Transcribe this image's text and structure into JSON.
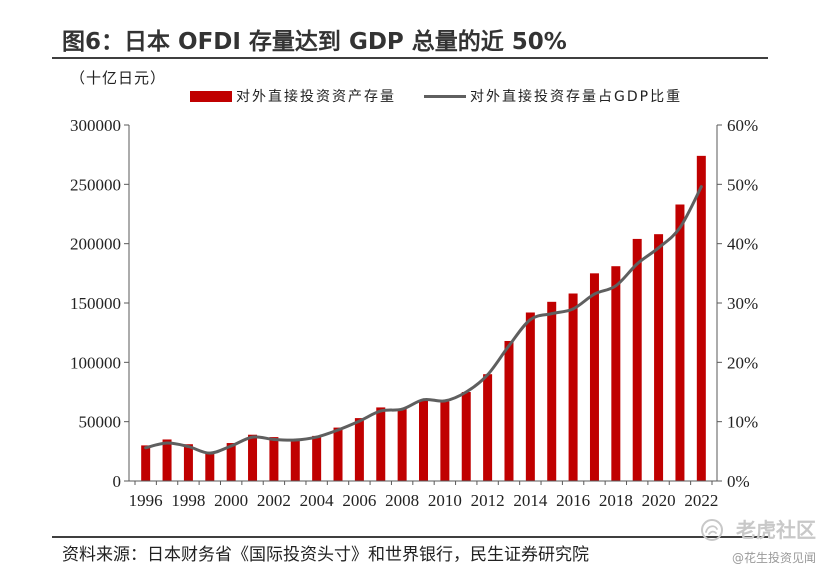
{
  "source": "资料来源：日本财务省《国际投资头寸》和世界银行，民生证券研究院",
  "watermark": {
    "brand": "老虎社区",
    "handle": "@花生投资见闻",
    "logo_icon": "tiger-community-logo-icon"
  },
  "colors": {
    "bar": "#c00000",
    "line": "#5f5f5f",
    "axis": "#595959",
    "rule": "#3f3f3f"
  },
  "chart_data": {
    "type": "bar",
    "title": "图6：日本 OFDI 存量达到 GDP 总量的近 50%",
    "ylabel_left": "（十亿日元）",
    "categories": [
      "1996",
      "1997",
      "1998",
      "1999",
      "2000",
      "2001",
      "2002",
      "2003",
      "2004",
      "2005",
      "2006",
      "2007",
      "2008",
      "2009",
      "2010",
      "2011",
      "2012",
      "2013",
      "2014",
      "2015",
      "2016",
      "2017",
      "2018",
      "2019",
      "2020",
      "2021",
      "2022"
    ],
    "x_tick_labels": [
      "1996",
      "1998",
      "2000",
      "2002",
      "2004",
      "2006",
      "2008",
      "2010",
      "2012",
      "2014",
      "2016",
      "2018",
      "2020",
      "2022"
    ],
    "series": [
      {
        "name": "对外直接投资资产存量",
        "type": "bar",
        "axis": "left",
        "values": [
          30000,
          35000,
          31000,
          24000,
          32000,
          39000,
          37000,
          35000,
          38000,
          45000,
          53000,
          62000,
          61000,
          68000,
          67000,
          75000,
          90000,
          118000,
          142000,
          151000,
          158000,
          175000,
          181000,
          204000,
          208000,
          233000,
          274000
        ]
      },
      {
        "name": "对外直接投资存量占GDP比重",
        "type": "line",
        "axis": "right",
        "values": [
          5.6,
          6.4,
          5.8,
          4.7,
          5.9,
          7.4,
          7.0,
          6.9,
          7.4,
          8.6,
          10.1,
          11.8,
          12.1,
          13.7,
          13.5,
          15.0,
          17.9,
          22.8,
          27.2,
          28.2,
          29.0,
          31.5,
          32.9,
          36.6,
          39.3,
          42.7,
          49.6
        ]
      }
    ],
    "ylim_left": [
      0,
      300000
    ],
    "yticks_left": [
      "0",
      "50000",
      "100000",
      "150000",
      "200000",
      "250000",
      "300000"
    ],
    "ylim_right": [
      0,
      60
    ],
    "yticks_right": [
      "0%",
      "10%",
      "20%",
      "30%",
      "40%",
      "50%",
      "60%"
    ],
    "legend_position": "top",
    "grid": false,
    "smooth_line": true
  }
}
